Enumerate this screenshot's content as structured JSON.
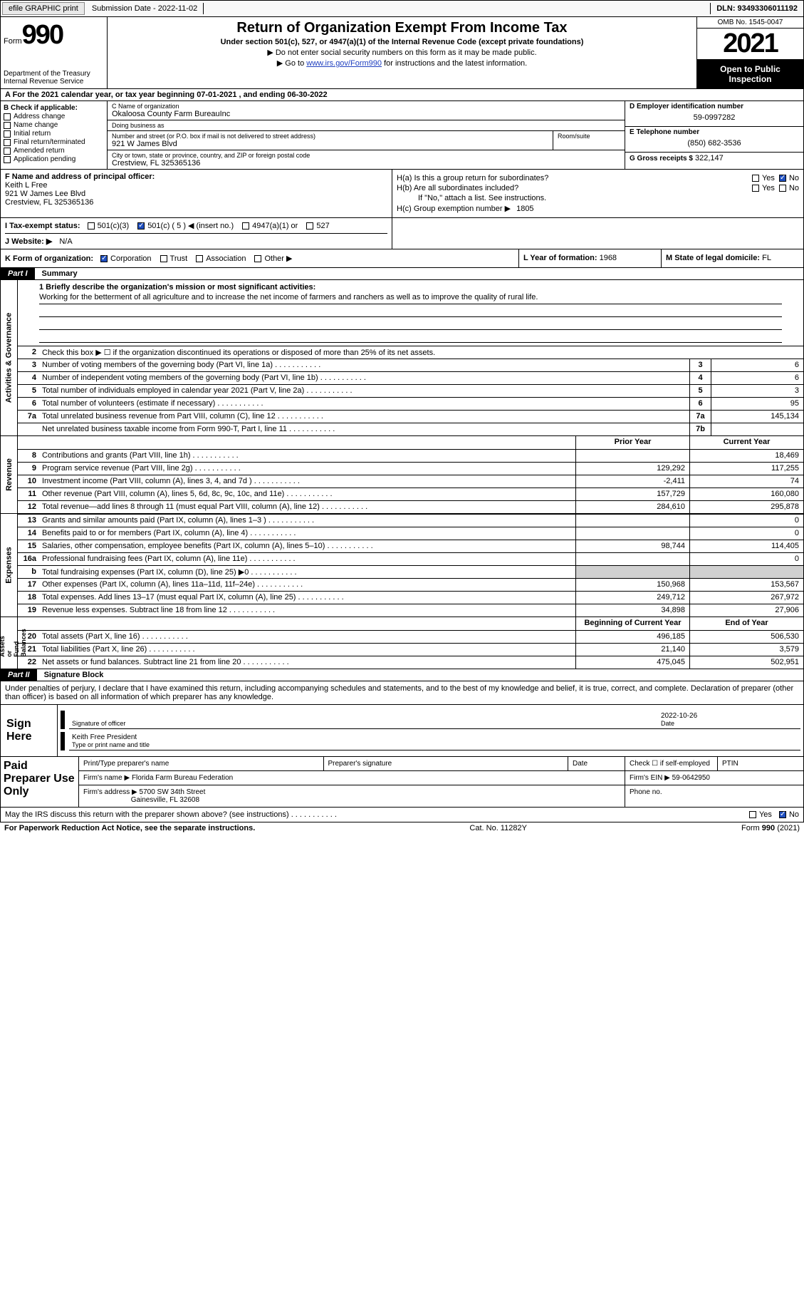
{
  "topbar": {
    "efile_label": "efile GRAPHIC print",
    "submission_label": "Submission Date - 2022-11-02",
    "dln": "DLN: 93493306011192"
  },
  "header": {
    "form_word": "Form",
    "form_number": "990",
    "dept": "Department of the Treasury\nInternal Revenue Service",
    "title": "Return of Organization Exempt From Income Tax",
    "subtitle": "Under section 501(c), 527, or 4947(a)(1) of the Internal Revenue Code (except private foundations)",
    "line_ssn": "▶ Do not enter social security numbers on this form as it may be made public.",
    "line_goto_pre": "▶ Go to ",
    "line_goto_link": "www.irs.gov/Form990",
    "line_goto_post": " for instructions and the latest information.",
    "omb": "OMB No. 1545-0047",
    "year": "2021",
    "open": "Open to Public Inspection"
  },
  "row_a": "A For the 2021 calendar year, or tax year beginning 07-01-2021    , and ending 06-30-2022",
  "col_b": {
    "label": "B Check if applicable:",
    "items": [
      "Address change",
      "Name change",
      "Initial return",
      "Final return/terminated",
      "Amended return",
      "Application pending"
    ]
  },
  "col_c": {
    "name_lbl": "C Name of organization",
    "name_val": "Okaloosa County Farm BureauInc",
    "dba_lbl": "Doing business as",
    "dba_val": "",
    "addr_lbl": "Number and street (or P.O. box if mail is not delivered to street address)",
    "addr_val": "921 W James Blvd",
    "room_lbl": "Room/suite",
    "city_lbl": "City or town, state or province, country, and ZIP or foreign postal code",
    "city_val": "Crestview, FL  325365136"
  },
  "col_d": {
    "ein_lbl": "D Employer identification number",
    "ein_val": "59-0997282",
    "tel_lbl": "E Telephone number",
    "tel_val": "(850) 682-3536",
    "gross_lbl": "G Gross receipts $",
    "gross_val": "322,147"
  },
  "f_block": {
    "lbl": "F Name and address of principal officer:",
    "name": "Keith L Free",
    "addr1": "921 W James Lee Blvd",
    "addr2": "Crestview, FL  325365136"
  },
  "h_block": {
    "a_lbl": "H(a)  Is this a group return for subordinates?",
    "b_lbl": "H(b)  Are all subordinates included?",
    "b_note": "If \"No,\" attach a list. See instructions.",
    "c_lbl": "H(c)  Group exemption number ▶",
    "c_val": "1805",
    "yes": "Yes",
    "no": "No"
  },
  "tax_status": {
    "lbl": "I   Tax-exempt status:",
    "opts": [
      "501(c)(3)",
      "501(c) ( 5 ) ◀ (insert no.)",
      "4947(a)(1) or",
      "527"
    ]
  },
  "website": {
    "lbl": "J   Website: ▶",
    "val": "N/A"
  },
  "k_row": {
    "lbl": "K Form of organization:",
    "opts": [
      "Corporation",
      "Trust",
      "Association",
      "Other ▶"
    ],
    "year_lbl": "L Year of formation:",
    "year_val": "1968",
    "state_lbl": "M State of legal domicile:",
    "state_val": "FL"
  },
  "part1": {
    "part_label": "Part I",
    "part_title": "Summary",
    "line1_lbl": "1   Briefly describe the organization's mission or most significant activities:",
    "mission": "Working for the betterment of all agriculture and to increase the net income of farmers and ranchers as well as to improve the quality of rural life.",
    "line2": "Check this box ▶ ☐  if the organization discontinued its operations or disposed of more than 25% of its net assets.",
    "lines_a": [
      {
        "n": "3",
        "d": "Number of voting members of the governing body (Part VI, line 1a)",
        "box": "3",
        "v": "6"
      },
      {
        "n": "4",
        "d": "Number of independent voting members of the governing body (Part VI, line 1b)",
        "box": "4",
        "v": "6"
      },
      {
        "n": "5",
        "d": "Total number of individuals employed in calendar year 2021 (Part V, line 2a)",
        "box": "5",
        "v": "3"
      },
      {
        "n": "6",
        "d": "Total number of volunteers (estimate if necessary)",
        "box": "6",
        "v": "95"
      },
      {
        "n": "7a",
        "d": "Total unrelated business revenue from Part VIII, column (C), line 12",
        "box": "7a",
        "v": "145,134"
      },
      {
        "n": "",
        "d": "Net unrelated business taxable income from Form 990-T, Part I, line 11",
        "box": "7b",
        "v": ""
      }
    ],
    "col_hdrs": {
      "prior": "Prior Year",
      "current": "Current Year"
    },
    "lines_rev": [
      {
        "n": "8",
        "d": "Contributions and grants (Part VIII, line 1h)",
        "p": "",
        "c": "18,469"
      },
      {
        "n": "9",
        "d": "Program service revenue (Part VIII, line 2g)",
        "p": "129,292",
        "c": "117,255"
      },
      {
        "n": "10",
        "d": "Investment income (Part VIII, column (A), lines 3, 4, and 7d )",
        "p": "-2,411",
        "c": "74"
      },
      {
        "n": "11",
        "d": "Other revenue (Part VIII, column (A), lines 5, 6d, 8c, 9c, 10c, and 11e)",
        "p": "157,729",
        "c": "160,080"
      },
      {
        "n": "12",
        "d": "Total revenue—add lines 8 through 11 (must equal Part VIII, column (A), line 12)",
        "p": "284,610",
        "c": "295,878"
      }
    ],
    "lines_exp": [
      {
        "n": "13",
        "d": "Grants and similar amounts paid (Part IX, column (A), lines 1–3 )",
        "p": "",
        "c": "0"
      },
      {
        "n": "14",
        "d": "Benefits paid to or for members (Part IX, column (A), line 4)",
        "p": "",
        "c": "0"
      },
      {
        "n": "15",
        "d": "Salaries, other compensation, employee benefits (Part IX, column (A), lines 5–10)",
        "p": "98,744",
        "c": "114,405"
      },
      {
        "n": "16a",
        "d": "Professional fundraising fees (Part IX, column (A), line 11e)",
        "p": "",
        "c": "0"
      },
      {
        "n": "b",
        "d": "Total fundraising expenses (Part IX, column (D), line 25) ▶0",
        "p": "shade",
        "c": "shade"
      },
      {
        "n": "17",
        "d": "Other expenses (Part IX, column (A), lines 11a–11d, 11f–24e)",
        "p": "150,968",
        "c": "153,567"
      },
      {
        "n": "18",
        "d": "Total expenses. Add lines 13–17 (must equal Part IX, column (A), line 25)",
        "p": "249,712",
        "c": "267,972"
      },
      {
        "n": "19",
        "d": "Revenue less expenses. Subtract line 18 from line 12",
        "p": "34,898",
        "c": "27,906"
      }
    ],
    "net_hdrs": {
      "begin": "Beginning of Current Year",
      "end": "End of Year"
    },
    "lines_net": [
      {
        "n": "20",
        "d": "Total assets (Part X, line 16)",
        "p": "496,185",
        "c": "506,530"
      },
      {
        "n": "21",
        "d": "Total liabilities (Part X, line 26)",
        "p": "21,140",
        "c": "3,579"
      },
      {
        "n": "22",
        "d": "Net assets or fund balances. Subtract line 21 from line 20",
        "p": "475,045",
        "c": "502,951"
      }
    ],
    "side_labels": {
      "act": "Activities & Governance",
      "rev": "Revenue",
      "exp": "Expenses",
      "net": "Net Assets or\nFund Balances"
    }
  },
  "part2": {
    "part_label": "Part II",
    "part_title": "Signature Block",
    "declaration": "Under penalties of perjury, I declare that I have examined this return, including accompanying schedules and statements, and to the best of my knowledge and belief, it is true, correct, and complete. Declaration of preparer (other than officer) is based on all information of which preparer has any knowledge.",
    "sign_here": "Sign Here",
    "sig_officer": "Signature of officer",
    "date": "Date",
    "sig_date_val": "2022-10-26",
    "name_title": "Keith Free  President",
    "name_title_lbl": "Type or print name and title",
    "paid_lbl": "Paid Preparer Use Only",
    "pp_name_lbl": "Print/Type preparer's name",
    "pp_sig_lbl": "Preparer's signature",
    "pp_date_lbl": "Date",
    "pp_check_lbl": "Check ☐ if self-employed",
    "ptin_lbl": "PTIN",
    "firm_name_lbl": "Firm's name    ▶",
    "firm_name": "Florida Farm Bureau Federation",
    "firm_ein_lbl": "Firm's EIN ▶",
    "firm_ein": "59-0642950",
    "firm_addr_lbl": "Firm's address ▶",
    "firm_addr1": "5700 SW 34th Street",
    "firm_addr2": "Gainesville, FL  32608",
    "phone_lbl": "Phone no.",
    "discuss": "May the IRS discuss this return with the preparer shown above? (see instructions)"
  },
  "footer": {
    "left": "For Paperwork Reduction Act Notice, see the separate instructions.",
    "mid": "Cat. No. 11282Y",
    "right": "Form 990 (2021)"
  }
}
